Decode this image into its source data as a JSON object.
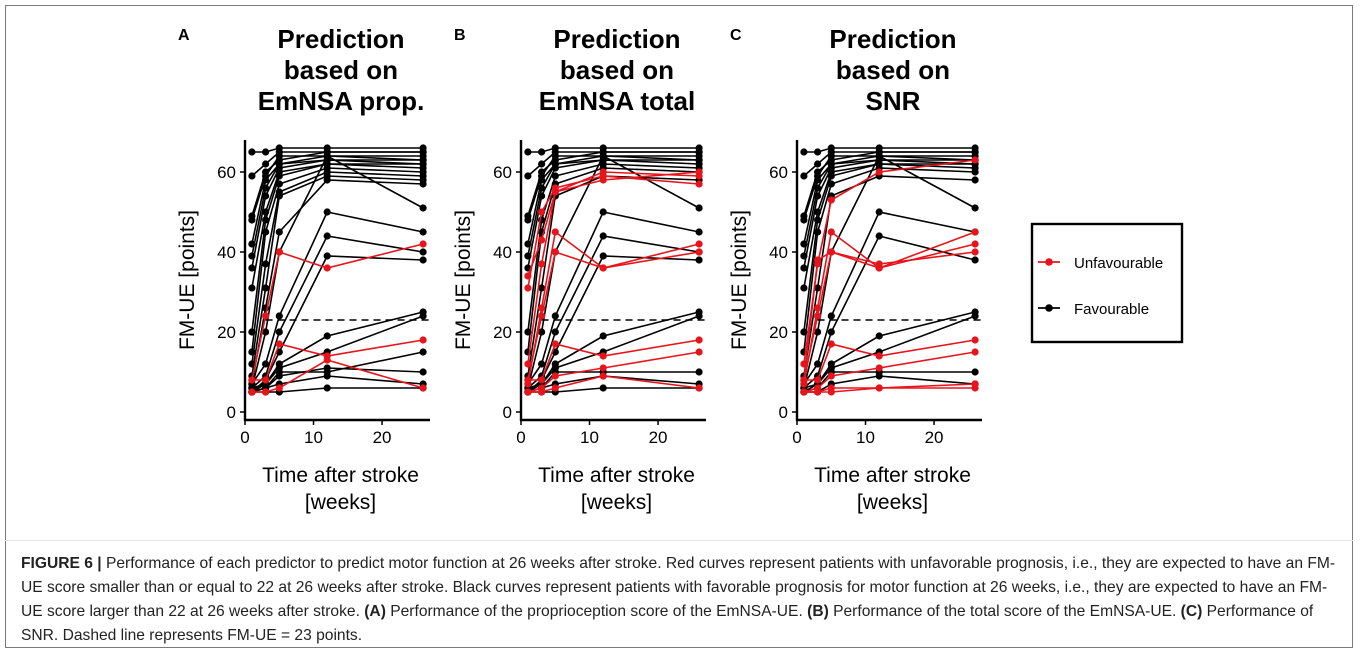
{
  "colors": {
    "unfavourable": "#e8141c",
    "favourable": "#000000",
    "threshold_line": "#000000"
  },
  "legend": {
    "position": "right",
    "items": [
      {
        "label": "Unfavourable",
        "color": "#e8141c"
      },
      {
        "label": "Favourable",
        "color": "#000000"
      }
    ]
  },
  "caption": {
    "figure_label": "FIGURE 6 |",
    "intro": " Performance of each predictor to predict motor function at 26 weeks after stroke. Red curves represent patients with unfavorable prognosis, i.e., they are expected to have an FM-UE score smaller than or equal to 22 at 26 weeks after stroke. Black curves represent patients with favorable prognosis for motor function at 26 weeks, i.e., they are expected to have an FM-UE score larger than 22 at 26 weeks after stroke. ",
    "a_label": "(A)",
    "a_text": " Performance of the proprioception score of the EmNSA-UE. ",
    "b_label": "(B)",
    "b_text": " Performance of the total score of the EmNSA-UE. ",
    "c_label": "(C)",
    "c_text": " Performance of SNR. Dashed line represents FM-UE = 23 points."
  },
  "chart_data": [
    {
      "type": "line",
      "panel_label": "A",
      "title": [
        "Prediction",
        "based on",
        "EmNSA prop."
      ],
      "xlabel": [
        "Time after stroke",
        "[weeks]"
      ],
      "ylabel": "FM-UE [points]",
      "xlim": [
        0,
        27
      ],
      "ylim": [
        -2,
        68
      ],
      "xticks": [
        0,
        10,
        20
      ],
      "yticks": [
        0,
        20,
        40,
        60
      ],
      "threshold": 23,
      "x": [
        1,
        3,
        5,
        12,
        26
      ],
      "series": [
        {
          "group": "favourable",
          "values": [
            65,
            65,
            66,
            66,
            66
          ]
        },
        {
          "group": "favourable",
          "values": [
            59,
            62,
            65,
            65,
            65
          ]
        },
        {
          "group": "favourable",
          "values": [
            49,
            60,
            63,
            65,
            65
          ]
        },
        {
          "group": "favourable",
          "values": [
            48,
            59,
            64,
            64,
            64
          ]
        },
        {
          "group": "favourable",
          "values": [
            42,
            58,
            62,
            64,
            63
          ]
        },
        {
          "group": "favourable",
          "values": [
            39,
            56,
            62,
            63,
            63
          ]
        },
        {
          "group": "favourable",
          "values": [
            36,
            54,
            61,
            63,
            62
          ]
        },
        {
          "group": "favourable",
          "values": [
            31,
            50,
            60,
            62,
            62
          ]
        },
        {
          "group": "favourable",
          "values": [
            20,
            48,
            59,
            62,
            61
          ]
        },
        {
          "group": "favourable",
          "values": [
            15,
            45,
            57,
            61,
            60
          ]
        },
        {
          "group": "favourable",
          "values": [
            12,
            37,
            55,
            60,
            59
          ]
        },
        {
          "group": "favourable",
          "values": [
            9,
            31,
            54,
            59,
            58
          ]
        },
        {
          "group": "favourable",
          "values": [
            7,
            26,
            45,
            58,
            57
          ]
        },
        {
          "group": "favourable",
          "values": [
            6,
            20,
            40,
            64,
            51
          ]
        },
        {
          "group": "favourable",
          "values": [
            7,
            12,
            24,
            50,
            45
          ]
        },
        {
          "group": "favourable",
          "values": [
            6,
            9,
            20,
            44,
            40
          ]
        },
        {
          "group": "favourable",
          "values": [
            5,
            8,
            15,
            39,
            38
          ]
        },
        {
          "group": "favourable",
          "values": [
            6,
            7,
            12,
            19,
            25
          ]
        },
        {
          "group": "favourable",
          "values": [
            5,
            7,
            11,
            15,
            24
          ]
        },
        {
          "group": "favourable",
          "values": [
            5,
            6,
            10,
            10,
            15
          ]
        },
        {
          "group": "favourable",
          "values": [
            5,
            6,
            9,
            11,
            10
          ]
        },
        {
          "group": "favourable",
          "values": [
            5,
            6,
            7,
            9,
            7
          ]
        },
        {
          "group": "favourable",
          "values": [
            5,
            5,
            5,
            6,
            6
          ]
        },
        {
          "group": "unfavourable",
          "values": [
            8,
            24,
            40,
            36,
            42
          ]
        },
        {
          "group": "unfavourable",
          "values": [
            8,
            8,
            17,
            14,
            18
          ]
        },
        {
          "group": "unfavourable",
          "values": [
            5,
            5,
            6,
            13,
            6
          ]
        }
      ]
    },
    {
      "type": "line",
      "panel_label": "B",
      "title": [
        "Prediction",
        "based on",
        "EmNSA total"
      ],
      "xlabel": [
        "Time after stroke",
        "[weeks]"
      ],
      "ylabel": "FM-UE [points]",
      "xlim": [
        0,
        27
      ],
      "ylim": [
        -2,
        68
      ],
      "xticks": [
        0,
        10,
        20
      ],
      "yticks": [
        0,
        20,
        40,
        60
      ],
      "threshold": 23,
      "x": [
        1,
        3,
        5,
        12,
        26
      ],
      "series": [
        {
          "group": "favourable",
          "values": [
            65,
            65,
            66,
            66,
            66
          ]
        },
        {
          "group": "favourable",
          "values": [
            59,
            62,
            65,
            65,
            65
          ]
        },
        {
          "group": "favourable",
          "values": [
            49,
            60,
            63,
            65,
            65
          ]
        },
        {
          "group": "favourable",
          "values": [
            48,
            59,
            64,
            64,
            64
          ]
        },
        {
          "group": "favourable",
          "values": [
            42,
            58,
            62,
            64,
            63
          ]
        },
        {
          "group": "favourable",
          "values": [
            39,
            56,
            62,
            63,
            63
          ]
        },
        {
          "group": "favourable",
          "values": [
            36,
            54,
            61,
            63,
            62
          ]
        },
        {
          "group": "favourable",
          "values": [
            20,
            48,
            59,
            62,
            61
          ]
        },
        {
          "group": "favourable",
          "values": [
            15,
            45,
            57,
            61,
            60
          ]
        },
        {
          "group": "favourable",
          "values": [
            9,
            31,
            54,
            59,
            58
          ]
        },
        {
          "group": "favourable",
          "values": [
            6,
            20,
            40,
            64,
            51
          ]
        },
        {
          "group": "favourable",
          "values": [
            7,
            12,
            24,
            50,
            45
          ]
        },
        {
          "group": "favourable",
          "values": [
            6,
            9,
            20,
            44,
            40
          ]
        },
        {
          "group": "favourable",
          "values": [
            5,
            8,
            15,
            39,
            38
          ]
        },
        {
          "group": "favourable",
          "values": [
            6,
            7,
            12,
            19,
            25
          ]
        },
        {
          "group": "favourable",
          "values": [
            5,
            7,
            11,
            15,
            24
          ]
        },
        {
          "group": "favourable",
          "values": [
            5,
            6,
            10,
            10,
            10
          ]
        },
        {
          "group": "favourable",
          "values": [
            5,
            6,
            7,
            9,
            7
          ]
        },
        {
          "group": "favourable",
          "values": [
            5,
            5,
            5,
            6,
            6
          ]
        },
        {
          "group": "unfavourable",
          "values": [
            34,
            43,
            55,
            58,
            60
          ]
        },
        {
          "group": "unfavourable",
          "values": [
            31,
            50,
            56,
            59,
            57
          ]
        },
        {
          "group": "unfavourable",
          "values": [
            12,
            37,
            55,
            60,
            59
          ]
        },
        {
          "group": "unfavourable",
          "values": [
            8,
            24,
            40,
            36,
            42
          ]
        },
        {
          "group": "unfavourable",
          "values": [
            7,
            26,
            45,
            36,
            40
          ]
        },
        {
          "group": "unfavourable",
          "values": [
            8,
            8,
            17,
            14,
            18
          ]
        },
        {
          "group": "unfavourable",
          "values": [
            5,
            6,
            9,
            11,
            15
          ]
        },
        {
          "group": "unfavourable",
          "values": [
            5,
            5,
            6,
            9,
            6
          ]
        }
      ]
    },
    {
      "type": "line",
      "panel_label": "C",
      "title": [
        "Prediction",
        "based on",
        "SNR"
      ],
      "xlabel": [
        "Time after stroke",
        "[weeks]"
      ],
      "ylabel": "FM-UE [points]",
      "xlim": [
        0,
        27
      ],
      "ylim": [
        -2,
        68
      ],
      "xticks": [
        0,
        10,
        20
      ],
      "yticks": [
        0,
        20,
        40,
        60
      ],
      "threshold": 23,
      "x": [
        1,
        3,
        5,
        12,
        26
      ],
      "series": [
        {
          "group": "favourable",
          "values": [
            65,
            65,
            66,
            66,
            66
          ]
        },
        {
          "group": "favourable",
          "values": [
            59,
            62,
            65,
            65,
            65
          ]
        },
        {
          "group": "favourable",
          "values": [
            49,
            60,
            63,
            65,
            65
          ]
        },
        {
          "group": "favourable",
          "values": [
            48,
            59,
            64,
            64,
            64
          ]
        },
        {
          "group": "favourable",
          "values": [
            42,
            58,
            62,
            64,
            63
          ]
        },
        {
          "group": "favourable",
          "values": [
            39,
            56,
            62,
            63,
            63
          ]
        },
        {
          "group": "favourable",
          "values": [
            36,
            54,
            61,
            63,
            62
          ]
        },
        {
          "group": "favourable",
          "values": [
            31,
            50,
            60,
            62,
            62
          ]
        },
        {
          "group": "favourable",
          "values": [
            20,
            48,
            59,
            62,
            61
          ]
        },
        {
          "group": "favourable",
          "values": [
            15,
            45,
            57,
            61,
            60
          ]
        },
        {
          "group": "favourable",
          "values": [
            9,
            31,
            54,
            59,
            58
          ]
        },
        {
          "group": "favourable",
          "values": [
            6,
            20,
            40,
            64,
            51
          ]
        },
        {
          "group": "favourable",
          "values": [
            7,
            12,
            24,
            50,
            45
          ]
        },
        {
          "group": "favourable",
          "values": [
            6,
            9,
            20,
            44,
            38
          ]
        },
        {
          "group": "favourable",
          "values": [
            6,
            7,
            12,
            19,
            25
          ]
        },
        {
          "group": "favourable",
          "values": [
            5,
            7,
            11,
            15,
            24
          ]
        },
        {
          "group": "favourable",
          "values": [
            5,
            6,
            10,
            10,
            10
          ]
        },
        {
          "group": "favourable",
          "values": [
            5,
            5,
            7,
            9,
            7
          ]
        },
        {
          "group": "unfavourable",
          "values": [
            12,
            37,
            53,
            60,
            63
          ]
        },
        {
          "group": "unfavourable",
          "values": [
            8,
            38,
            40,
            36,
            45
          ]
        },
        {
          "group": "unfavourable",
          "values": [
            7,
            26,
            45,
            36,
            42
          ]
        },
        {
          "group": "unfavourable",
          "values": [
            8,
            24,
            40,
            37,
            40
          ]
        },
        {
          "group": "unfavourable",
          "values": [
            8,
            8,
            17,
            14,
            18
          ]
        },
        {
          "group": "unfavourable",
          "values": [
            5,
            6,
            9,
            11,
            15
          ]
        },
        {
          "group": "unfavourable",
          "values": [
            5,
            5,
            6,
            6,
            7
          ]
        },
        {
          "group": "unfavourable",
          "values": [
            5,
            5,
            5,
            6,
            6
          ]
        }
      ]
    }
  ]
}
